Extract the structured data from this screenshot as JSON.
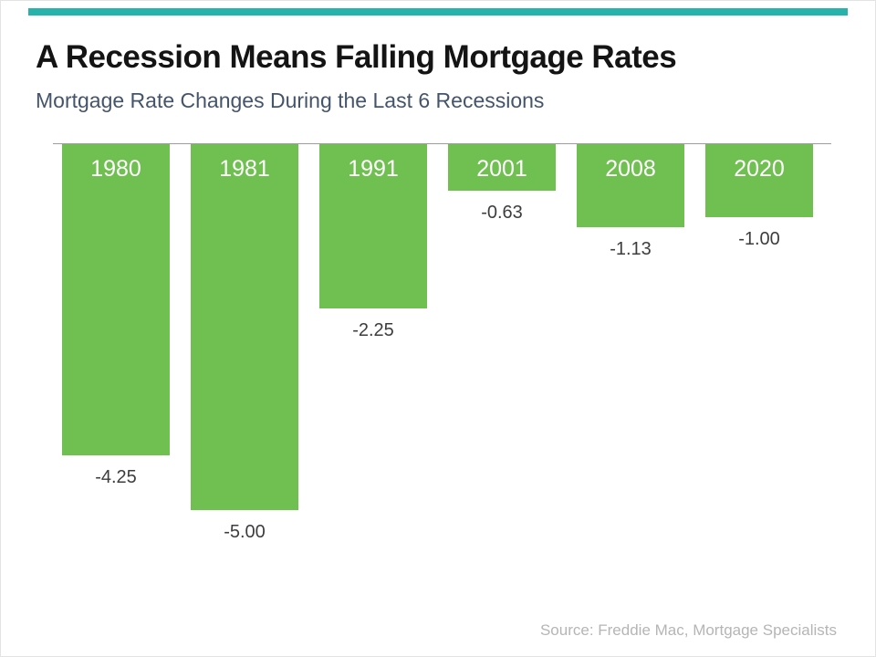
{
  "colors": {
    "accent_teal": "#25b3ab",
    "bar_green": "#70bf51",
    "title_text": "#141414",
    "subtitle_text": "#44546a",
    "value_text": "#3d3d3d",
    "source_text": "#b5b5b5",
    "baseline": "#9d9d9d"
  },
  "header": {
    "title": "A Recession Means Falling Mortgage Rates",
    "subtitle": "Mortgage Rate Changes During the Last 6 Recessions"
  },
  "chart_data": {
    "type": "bar",
    "categories": [
      "1980",
      "1981",
      "1991",
      "2001",
      "2008",
      "2020"
    ],
    "values": [
      -4.25,
      -5.0,
      -2.25,
      -0.63,
      -1.13,
      -1.0
    ],
    "value_labels": [
      "-4.25",
      "-5.00",
      "-2.25",
      "-0.63",
      "-1.13",
      "-1.00"
    ],
    "title": "A Recession Means Falling Mortgage Rates",
    "subtitle": "Mortgage Rate Changes During the Last 6 Recessions",
    "xlabel": "",
    "ylabel": "",
    "ylim": [
      -5.0,
      0
    ],
    "orientation": "columns-hanging-from-baseline",
    "grid": false,
    "legend": false,
    "bar_color": "#70bf51",
    "category_label_position": "inside-top-white",
    "value_label_position": "below-bar"
  },
  "footer": {
    "source": "Source: Freddie Mac, Mortgage Specialists"
  }
}
